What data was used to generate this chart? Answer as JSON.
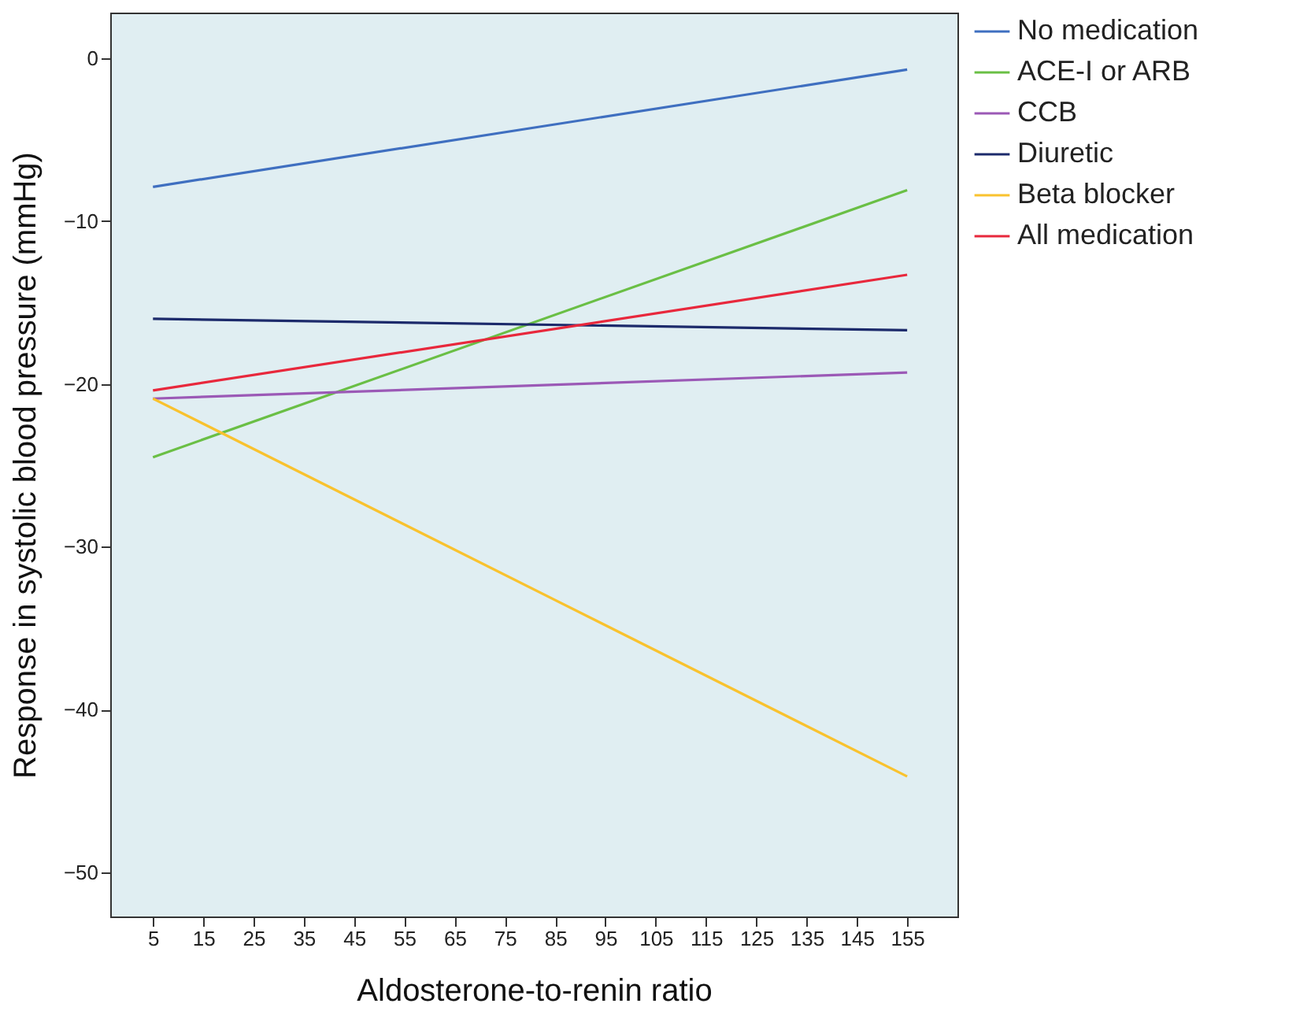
{
  "chart_data": {
    "type": "line",
    "xlabel": "Aldosterone-to-renin ratio",
    "ylabel": "Response in systolic blood pressure (mmHg)",
    "x": [
      5,
      155
    ],
    "series": [
      {
        "name": "No medication",
        "color": "#3f6fc0",
        "values": [
          -7.9,
          -0.7
        ]
      },
      {
        "name": "ACE-I or ARB",
        "color": "#6abf45",
        "values": [
          -24.5,
          -8.1
        ]
      },
      {
        "name": "CCB",
        "color": "#9b59b6",
        "values": [
          -20.9,
          -19.3
        ]
      },
      {
        "name": "Diuretic",
        "color": "#1c2a6b",
        "values": [
          -16.0,
          -16.7
        ]
      },
      {
        "name": "Beta blocker",
        "color": "#f9c22e",
        "values": [
          -20.9,
          -44.1
        ]
      },
      {
        "name": "All medication",
        "color": "#e8283c",
        "values": [
          -20.4,
          -13.3
        ]
      }
    ],
    "xlim": [
      -3.5,
      165
    ],
    "xticks": [
      5,
      15,
      25,
      35,
      45,
      55,
      65,
      75,
      85,
      95,
      105,
      115,
      125,
      135,
      145,
      155
    ],
    "ylim": [
      -52.7,
      2.8
    ],
    "yticks": [
      0,
      -10,
      -20,
      -30,
      -40,
      -50
    ],
    "grid": false,
    "legend": "top right",
    "marker": "none",
    "line_style": "solid"
  }
}
